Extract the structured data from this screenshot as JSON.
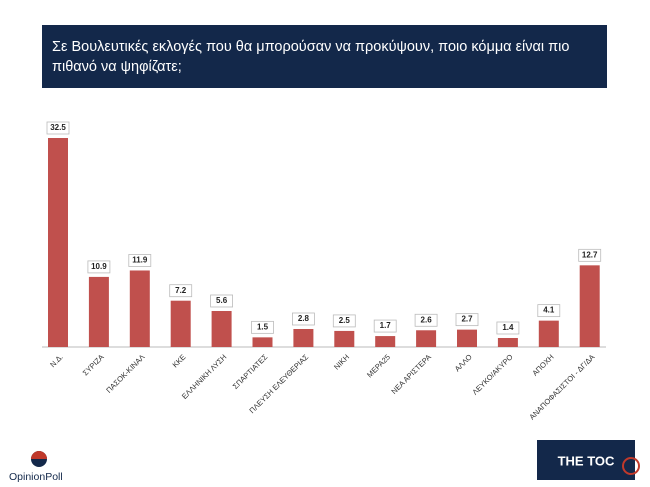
{
  "chart_data": {
    "type": "bar",
    "title": "Σε Βουλευτικές εκλογές που θα μπορούσαν να προκύψουν, ποιο κόμμα είναι πιο πιθανό να ψηφίζατε;",
    "categories": [
      "Ν.Δ.",
      "ΣΥΡΙΖΑ",
      "ΠΑΣΟΚ-ΚΙΝΑΛ",
      "ΚΚΕ",
      "ΕΛΛΗΝΙΚΗ ΛΥΣΗ",
      "ΣΠΑΡΤΙΑΤΕΣ",
      "ΠΛΕΥΣΗ ΕΛΕΥΘΕΡΙΑΣ",
      "ΝΙΚΗ",
      "ΜΕΡΑ25",
      "ΝΕΑ ΑΡΙΣΤΕΡΑ",
      "ΑΛΛΟ",
      "ΛΕΥΚΟ/ΑΚΥΡΟ",
      "ΑΠΟΧΗ",
      "ΑΝΑΠΟΦΑΣΙΣΤΟΙ - ΔΓ/ΔΑ"
    ],
    "values": [
      32.5,
      10.9,
      11.9,
      7.2,
      5.6,
      1.5,
      2.8,
      2.5,
      1.7,
      2.6,
      2.7,
      1.4,
      4.1,
      12.7
    ],
    "color": "#c0504d"
  },
  "logos": {
    "left": "OpinionPoll",
    "right": "THE TOC"
  }
}
